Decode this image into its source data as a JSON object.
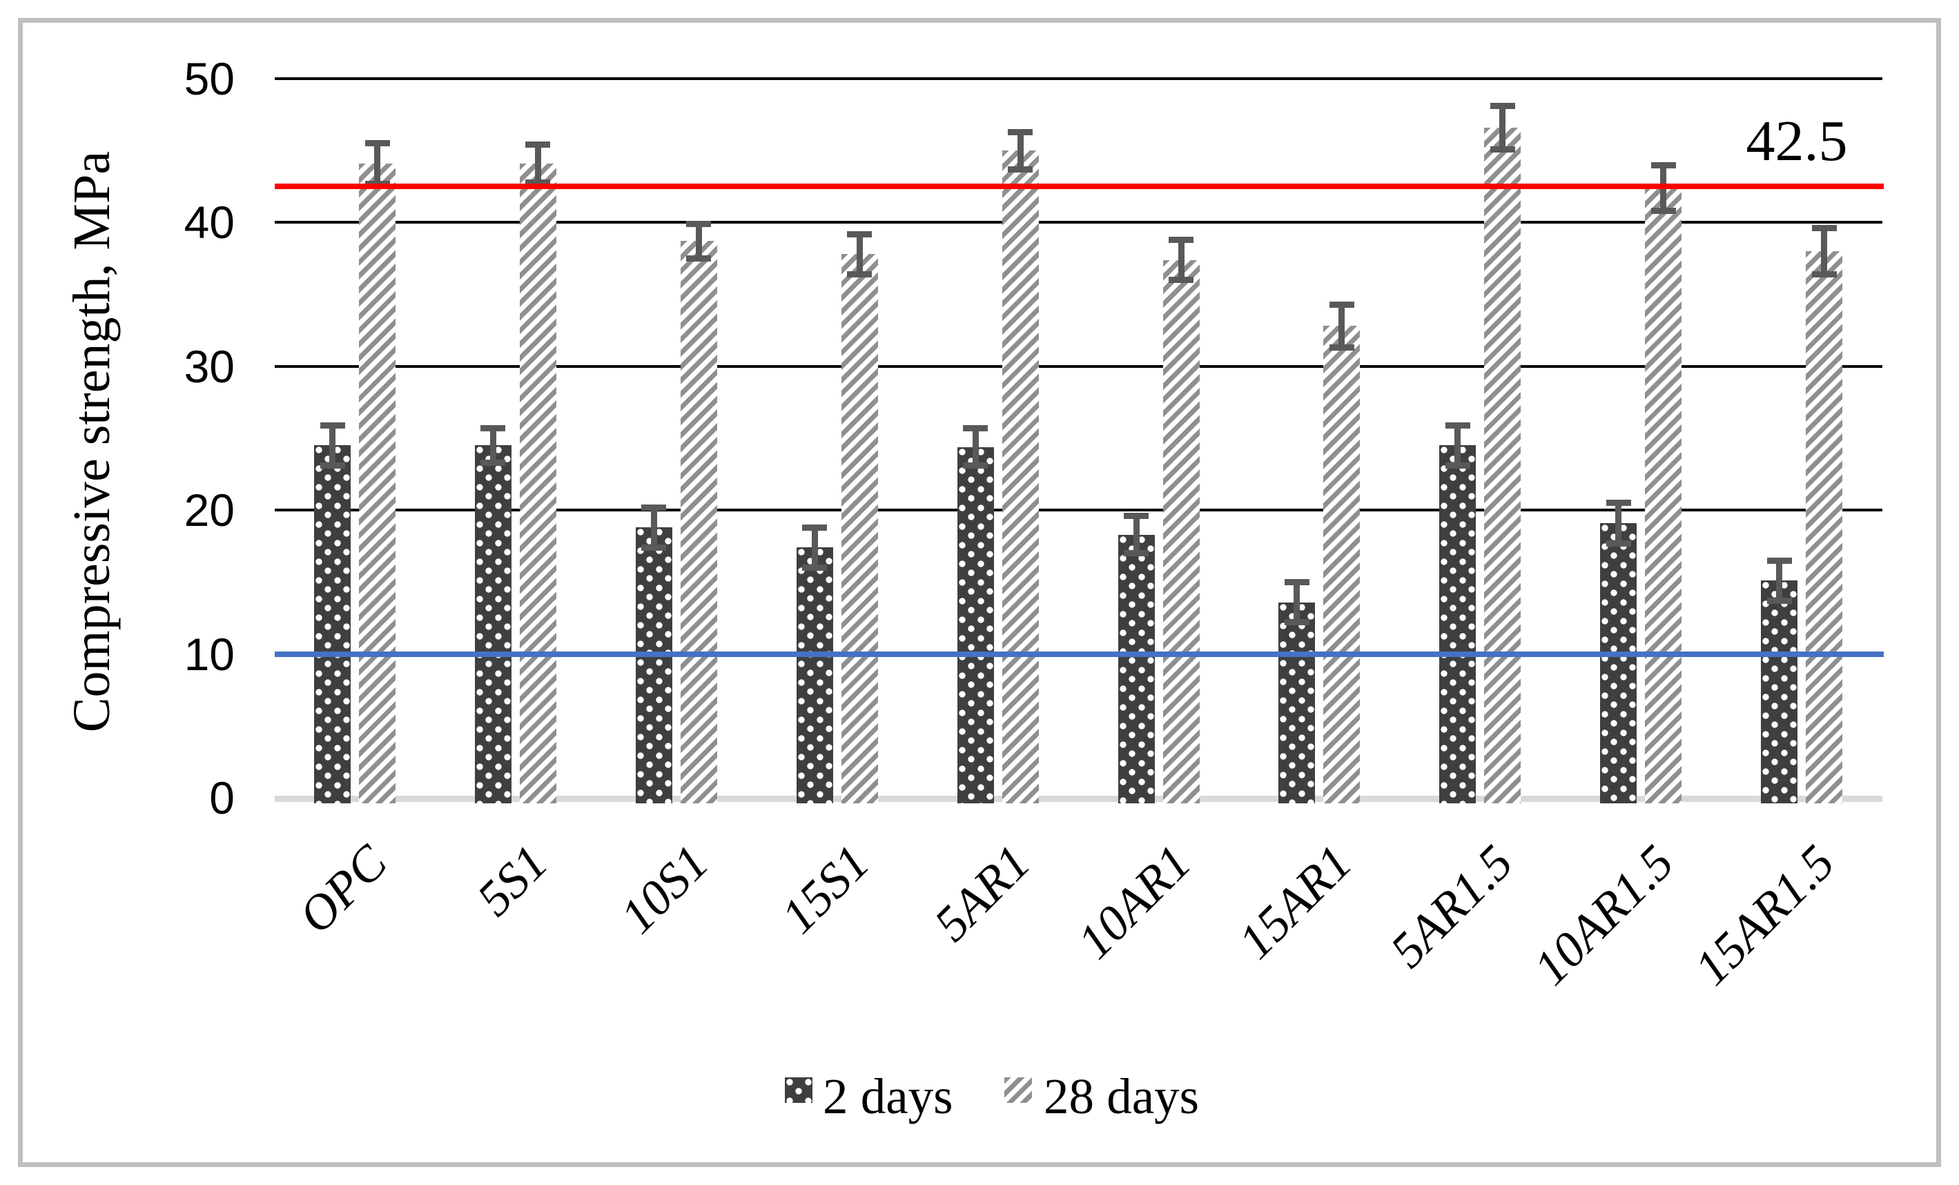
{
  "chart_data": {
    "type": "bar",
    "title": "",
    "ylabel": "Compressive strength, MPa",
    "xlabel": "",
    "ylim": [
      0,
      50
    ],
    "y_ticks": [
      0,
      10,
      20,
      30,
      40,
      50
    ],
    "grid": "horizontal-black",
    "legend_position": "bottom-center",
    "categories": [
      "OPC",
      "5S1",
      "10S1",
      "15S1",
      "5AR1",
      "10AR1",
      "15AR1",
      "5AR1.5",
      "10AR1.5",
      "15AR1.5"
    ],
    "series": [
      {
        "name": "2 days",
        "pattern": "dark-gray-with-white-dots",
        "color": "#3f3f3f",
        "values": [
          24.5,
          24.5,
          18.8,
          17.4,
          24.4,
          18.3,
          13.6,
          24.5,
          19.1,
          15.1
        ],
        "errors": [
          1.4,
          1.2,
          1.4,
          1.4,
          1.3,
          1.3,
          1.4,
          1.4,
          1.4,
          1.4
        ]
      },
      {
        "name": "28 days",
        "pattern": "white-with-gray-diagonal-stripes",
        "color": "#8f8f8f",
        "values": [
          44.1,
          44.1,
          38.7,
          37.8,
          45.0,
          37.4,
          32.8,
          46.6,
          42.4,
          38.0
        ],
        "errors": [
          1.4,
          1.3,
          1.2,
          1.4,
          1.3,
          1.4,
          1.5,
          1.5,
          1.6,
          1.6
        ]
      }
    ],
    "reference_lines": [
      {
        "value": 42.5,
        "color": "#ff0000",
        "label": "42.5"
      },
      {
        "value": 10,
        "color": "#4472c4",
        "label": ""
      }
    ],
    "error_bar_color": "#595959",
    "gridline_color": "#000000",
    "baseline_color": "#d9d9d9",
    "border_color": "#bfbfbf"
  }
}
